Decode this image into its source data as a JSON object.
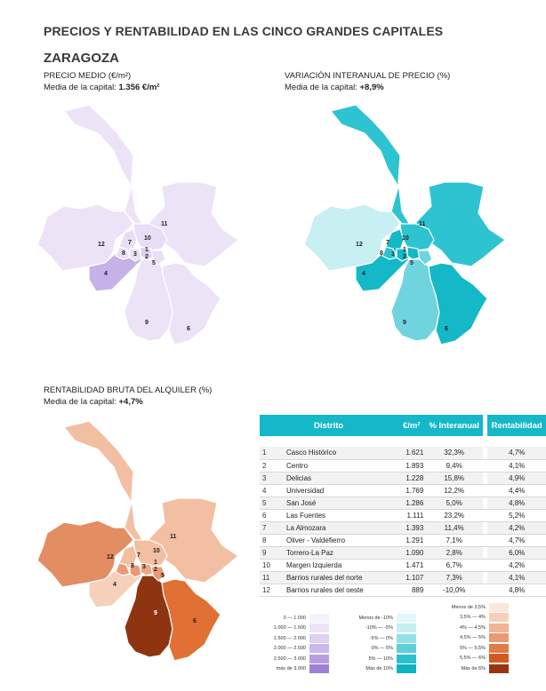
{
  "header": {
    "title": "PRECIOS Y RENTABILIDAD EN LAS CINCO GRANDES CAPITALES",
    "city": "ZARAGOZA"
  },
  "map_price": {
    "label": "PRECIO MEDIO (€/m²)",
    "mean_prefix": "Media de la capital:",
    "mean_value": "1.356 €/m²"
  },
  "map_var": {
    "label": "VARIACIÓN INTERANUAL DE PRECIO (%)",
    "mean_prefix": "Media de la capital:",
    "mean_value": "+8,9%"
  },
  "map_rent": {
    "label": "RENTABILIDAD BRUTA DEL ALQUILER (%)",
    "mean_prefix": "Media de la capital:",
    "mean_value": "+4,7%"
  },
  "district_labels": [
    "1",
    "2",
    "3",
    "4",
    "5",
    "6",
    "7",
    "8",
    "9",
    "10",
    "11",
    "12"
  ],
  "table": {
    "headers": {
      "district": "Distrito",
      "price": "€/m²",
      "var": "% Interanual",
      "rent": "Rentabilidad"
    },
    "rows": [
      {
        "n": "1",
        "name": "Casco Histórico",
        "price": "1.621",
        "var": "32,3%",
        "rent": "4,7%"
      },
      {
        "n": "2",
        "name": "Centro",
        "price": "1.893",
        "var": "9,4%",
        "rent": "4,1%"
      },
      {
        "n": "3",
        "name": "Delicias",
        "price": "1.228",
        "var": "15,8%",
        "rent": "4,9%"
      },
      {
        "n": "4",
        "name": "Universidad",
        "price": "1.769",
        "var": "12,2%",
        "rent": "4,4%"
      },
      {
        "n": "5",
        "name": "San José",
        "price": "1.286",
        "var": "5,0%",
        "rent": "4,8%"
      },
      {
        "n": "6",
        "name": "Las Fuentes",
        "price": "1.111",
        "var": "23,2%",
        "rent": "5,2%"
      },
      {
        "n": "7",
        "name": "La Almozara",
        "price": "1.393",
        "var": "11,4%",
        "rent": "4,2%"
      },
      {
        "n": "8",
        "name": "Oliver - Valdefierro",
        "price": "1.291",
        "var": "7,1%",
        "rent": "4,7%"
      },
      {
        "n": "9",
        "name": "Torrero-La Paz",
        "price": "1.090",
        "var": "2,8%",
        "rent": "6,0%"
      },
      {
        "n": "10",
        "name": "Margen Izquierda",
        "price": "1.471",
        "var": "6,7%",
        "rent": "4,2%"
      },
      {
        "n": "11",
        "name": "Barrios rurales del norte",
        "price": "1.107",
        "var": "7,3%",
        "rent": "4,1%"
      },
      {
        "n": "12",
        "name": "Barrios rurales del oeste",
        "price": "889",
        "var": "-10,0%",
        "rent": "4,8%"
      }
    ]
  },
  "legend_price": [
    {
      "text": "0   —  1.000",
      "color": "#f6f1fb"
    },
    {
      "text": "1.000  —  1.500",
      "color": "#ece3f7"
    },
    {
      "text": "1.500  —  2.000",
      "color": "#ddd0f0"
    },
    {
      "text": "2.000  —  2.500",
      "color": "#cbb8ea"
    },
    {
      "text": "2.500  —  3.000",
      "color": "#b79ee2"
    },
    {
      "text": "más de 3.000",
      "color": "#a07fd8"
    }
  ],
  "legend_var": [
    {
      "text": "Menos de -10%",
      "color": "#e2f7f9"
    },
    {
      "text": "-10%  —  -5%",
      "color": "#c3eef2"
    },
    {
      "text": "-5%  —  0%",
      "color": "#95e0e8"
    },
    {
      "text": "0%  —  5%",
      "color": "#5ccfdb"
    },
    {
      "text": "5%  —  10%",
      "color": "#2cc0cf"
    },
    {
      "text": "Más de 10%",
      "color": "#0fb2c2"
    }
  ],
  "legend_rent": [
    {
      "text": "Menos de 3,5%",
      "color": "#fbe6dc"
    },
    {
      "text": "3,5%  —  4%",
      "color": "#f6cfbb"
    },
    {
      "text": "4%  —  4,5%",
      "color": "#f1b596"
    },
    {
      "text": "4,5%  —  5%",
      "color": "#e99a72"
    },
    {
      "text": "5%  —  5,5%",
      "color": "#e27a45"
    },
    {
      "text": "5,5%  —  6%",
      "color": "#d25a1e"
    },
    {
      "text": "Más de 6%",
      "color": "#9a3410"
    }
  ],
  "colors": {
    "price": [
      "#efe7f8",
      "#e2d5f2",
      "#b89fe0"
    ],
    "var": [
      "#0fb7c6",
      "#2bc3d1",
      "#8fdde5",
      "#c8f0f3"
    ],
    "rent": [
      "#f6cab0",
      "#ee ac88",
      "#e38a5d",
      "#df6f2e",
      "#923211"
    ],
    "header": "#15b8c8"
  }
}
